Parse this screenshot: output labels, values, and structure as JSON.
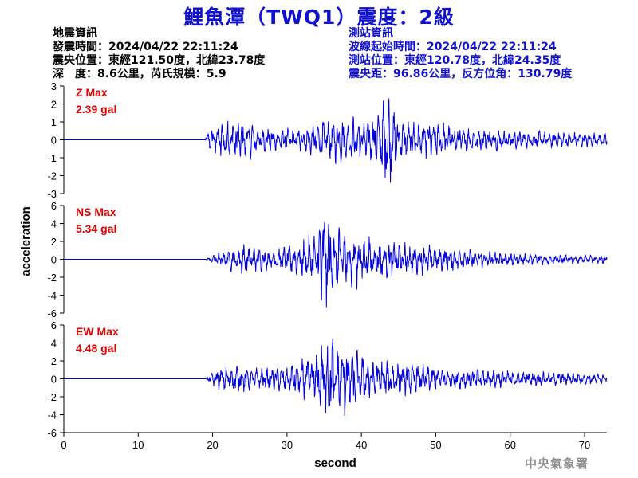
{
  "header": {
    "title": "鯉魚潭（TWQ1）震度：2級",
    "event_info": {
      "heading": "地震資訊",
      "origin_time": "發震時間：2024/04/22 22:11:24",
      "epicenter": "震央位置：東經121.50度，北緯23.78度",
      "depth_magnitude": "深　度：8.6公里，芮氏規模：5.9"
    },
    "station_info": {
      "heading": "測站資訊",
      "wave_start": "波線起始時間：2024/04/22 22:11:24",
      "station_location": "測站位置：東經120.78度，北緯24.35度",
      "distance_azimuth": "震央距：96.86公里，反方位角：130.79度"
    }
  },
  "footer": {
    "agency": "中央氣象署"
  },
  "colors": {
    "title": "#1010d0",
    "trace": "#0000e0",
    "max_label": "#e00000",
    "axis": "#000000"
  },
  "chart_data": {
    "type": "line",
    "xlabel": "second",
    "ylabel": "acceleration",
    "xlim": [
      0,
      73
    ],
    "xticks": [
      0,
      10,
      20,
      30,
      40,
      50,
      60,
      70
    ],
    "duration_seconds": 73,
    "signal_onset_seconds": 19,
    "panels": [
      {
        "name": "Z",
        "max_label": "Z Max",
        "max_value": "2.39 gal",
        "peak": 2.39,
        "ylim": [
          -3,
          3
        ],
        "yticks": [
          -3,
          -2,
          -1,
          0,
          1,
          2,
          3
        ],
        "envelope": [
          [
            0,
            0
          ],
          [
            18.8,
            0
          ],
          [
            19.5,
            0.4
          ],
          [
            20.5,
            0.9
          ],
          [
            21.5,
            1.1
          ],
          [
            23,
            1.0
          ],
          [
            25,
            0.9
          ],
          [
            27,
            0.6
          ],
          [
            29,
            0.5
          ],
          [
            31,
            0.5
          ],
          [
            33,
            0.7
          ],
          [
            35,
            0.9
          ],
          [
            37,
            1.0
          ],
          [
            40,
            1.0
          ],
          [
            42,
            1.1
          ],
          [
            43.5,
            2.3
          ],
          [
            45,
            0.9
          ],
          [
            48,
            0.8
          ],
          [
            50,
            0.8
          ],
          [
            53,
            0.6
          ],
          [
            57,
            0.5
          ],
          [
            62,
            0.4
          ],
          [
            67,
            0.35
          ],
          [
            73,
            0.3
          ]
        ]
      },
      {
        "name": "NS",
        "max_label": "NS Max",
        "max_value": "5.34 gal",
        "peak": 5.34,
        "ylim": [
          -6,
          6
        ],
        "yticks": [
          -6,
          -4,
          -2,
          0,
          2,
          4,
          6
        ],
        "envelope": [
          [
            0,
            0
          ],
          [
            19,
            0
          ],
          [
            20,
            0.3
          ],
          [
            22,
            0.9
          ],
          [
            24,
            1.3
          ],
          [
            26,
            1.0
          ],
          [
            28,
            0.8
          ],
          [
            30,
            1.1
          ],
          [
            32,
            1.5
          ],
          [
            34,
            2.2
          ],
          [
            35,
            5.3
          ],
          [
            36,
            3.0
          ],
          [
            37,
            3.2
          ],
          [
            38,
            2.6
          ],
          [
            40,
            2.0
          ],
          [
            42,
            1.6
          ],
          [
            45,
            1.4
          ],
          [
            48,
            1.2
          ],
          [
            52,
            1.0
          ],
          [
            57,
            0.7
          ],
          [
            62,
            0.5
          ],
          [
            67,
            0.4
          ],
          [
            73,
            0.3
          ]
        ]
      },
      {
        "name": "EW",
        "max_label": "EW Max",
        "max_value": "4.48 gal",
        "peak": 4.48,
        "ylim": [
          -6,
          6
        ],
        "yticks": [
          -6,
          -4,
          -2,
          0,
          2,
          4,
          6
        ],
        "envelope": [
          [
            0,
            0
          ],
          [
            19,
            0
          ],
          [
            19.5,
            0.4
          ],
          [
            21,
            1.1
          ],
          [
            23,
            1.3
          ],
          [
            25,
            1.1
          ],
          [
            28,
            1.0
          ],
          [
            30,
            1.3
          ],
          [
            32,
            1.8
          ],
          [
            34,
            2.5
          ],
          [
            35.5,
            4.5
          ],
          [
            37,
            3.5
          ],
          [
            38.5,
            3.2
          ],
          [
            40,
            2.4
          ],
          [
            42,
            1.8
          ],
          [
            45,
            1.5
          ],
          [
            48,
            1.4
          ],
          [
            52,
            1.1
          ],
          [
            57,
            0.9
          ],
          [
            62,
            0.7
          ],
          [
            67,
            0.6
          ],
          [
            73,
            0.5
          ]
        ]
      }
    ]
  }
}
